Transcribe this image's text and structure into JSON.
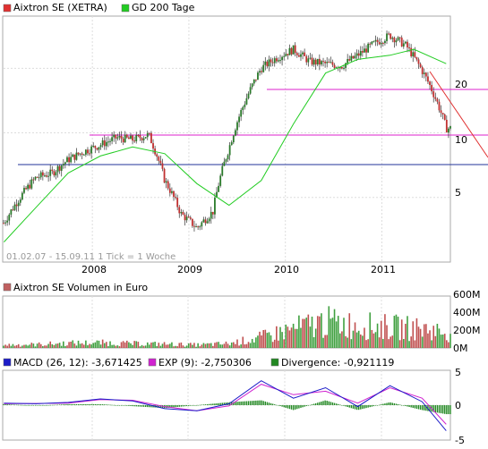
{
  "chart_data": [
    {
      "type": "line",
      "legend": [
        {
          "label": "Aixtron SE (XETRA)",
          "color": "#e03030"
        },
        {
          "label": "GD 200 Tage",
          "color": "#22cc22"
        }
      ],
      "info_text": "01.02.07 - 15.09.11   1 Tick = 1 Woche",
      "x_ticks": [
        "2008",
        "2009",
        "2010",
        "2011"
      ],
      "y_ticks": [
        "20",
        "10",
        "5"
      ],
      "y_scale": "log",
      "y_range": [
        2.5,
        35
      ],
      "colors": {
        "candle_up": "#2a7a2a",
        "candle_down": "#c03030",
        "sma": "#22cc22",
        "hline_magenta": "#dd22cc",
        "hline_blue": "#223399",
        "trend": "#e03030"
      },
      "series": [
        {
          "name": "Aixtron SE (XETRA)",
          "x": [
            "2007-02",
            "2007-04",
            "2007-06",
            "2007-08",
            "2007-10",
            "2007-12",
            "2008-02",
            "2008-04",
            "2008-06",
            "2008-08",
            "2008-10",
            "2008-12",
            "2009-02",
            "2009-04",
            "2009-06",
            "2009-08",
            "2009-10",
            "2009-12",
            "2010-02",
            "2010-04",
            "2010-06",
            "2010-08",
            "2010-10",
            "2010-12",
            "2011-02",
            "2011-04",
            "2011-06",
            "2011-08",
            "2011-09"
          ],
          "values": [
            3.8,
            5.0,
            6.2,
            6.5,
            7.5,
            8.2,
            8.8,
            9.5,
            9.3,
            9.8,
            6.0,
            4.2,
            3.6,
            4.3,
            8.5,
            14.0,
            20.0,
            22.5,
            24.5,
            21.5,
            21.0,
            20.5,
            23.0,
            26.0,
            28.5,
            25.5,
            19.5,
            13.5,
            10.5
          ]
        },
        {
          "name": "GD 200 Tage",
          "x": [
            "2007-02",
            "2007-06",
            "2007-10",
            "2008-02",
            "2008-06",
            "2008-10",
            "2009-02",
            "2009-06",
            "2009-10",
            "2010-02",
            "2010-06",
            "2010-10",
            "2011-02",
            "2011-05",
            "2011-09"
          ],
          "values": [
            3.1,
            4.5,
            6.5,
            7.8,
            8.6,
            8.0,
            5.8,
            4.6,
            6.0,
            11.0,
            19.0,
            22.0,
            23.0,
            24.5,
            21.0
          ]
        }
      ],
      "hlines": [
        20,
        10.5,
        8
      ]
    },
    {
      "type": "bar",
      "legend": [
        {
          "label": "Aixtron SE Volumen in Euro",
          "color": "#c06060"
        }
      ],
      "y_ticks": [
        "600M",
        "400M",
        "200M",
        "0M"
      ],
      "ylim": [
        0,
        600
      ],
      "unit": "M EUR",
      "x": [
        "2007-02",
        "2007-06",
        "2007-10",
        "2008-02",
        "2008-06",
        "2008-10",
        "2009-02",
        "2009-06",
        "2009-10",
        "2010-02",
        "2010-06",
        "2010-10",
        "2011-02",
        "2011-06",
        "2011-09"
      ],
      "values": [
        35,
        40,
        55,
        60,
        50,
        45,
        35,
        50,
        120,
        220,
        300,
        260,
        240,
        220,
        180
      ],
      "colors": {
        "up": "#40a040",
        "down": "#c05050"
      }
    },
    {
      "type": "line",
      "legend": [
        {
          "label": "MACD (26, 12): -3,671425",
          "color": "#1c1cc8"
        },
        {
          "label": "EXP (9): -2,750306",
          "color": "#d022d0"
        },
        {
          "label": "Divergence: -0,921119",
          "color": "#228822"
        }
      ],
      "y_ticks": [
        "5",
        "0",
        "-5"
      ],
      "ylim": [
        -5,
        5
      ],
      "series": [
        {
          "name": "MACD (26, 12)",
          "x": [
            "2007-02",
            "2007-06",
            "2007-10",
            "2008-02",
            "2008-06",
            "2008-10",
            "2009-02",
            "2009-06",
            "2009-10",
            "2010-02",
            "2010-06",
            "2010-10",
            "2011-02",
            "2011-06",
            "2011-09"
          ],
          "values": [
            0.3,
            0.2,
            0.4,
            0.9,
            0.6,
            -0.5,
            -0.8,
            0.2,
            3.5,
            1.0,
            2.5,
            -0.2,
            2.8,
            0.5,
            -3.67
          ]
        },
        {
          "name": "EXP (9)",
          "x": [
            "2007-02",
            "2007-06",
            "2007-10",
            "2008-02",
            "2008-06",
            "2008-10",
            "2009-02",
            "2009-06",
            "2009-10",
            "2010-02",
            "2010-06",
            "2010-10",
            "2011-02",
            "2011-06",
            "2011-09"
          ],
          "values": [
            0.2,
            0.25,
            0.3,
            0.8,
            0.7,
            -0.2,
            -0.8,
            -0.1,
            3.0,
            1.5,
            2.0,
            0.3,
            2.5,
            1.0,
            -2.75
          ]
        }
      ]
    }
  ]
}
